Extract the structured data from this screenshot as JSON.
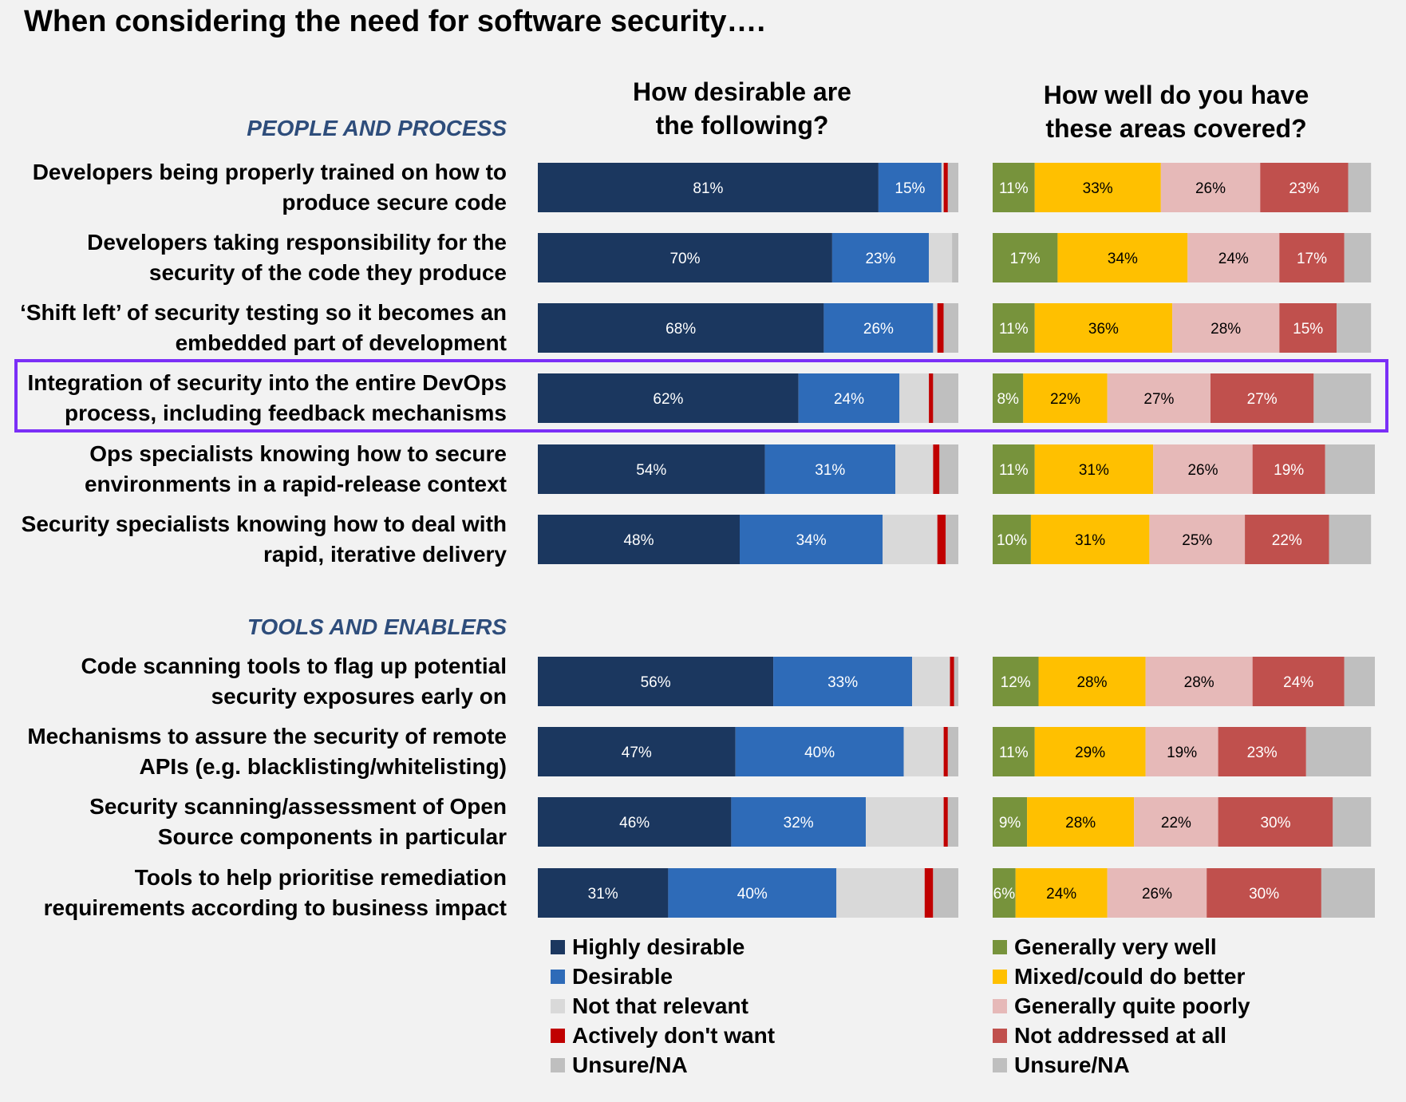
{
  "title": "When considering the need for software security….",
  "chart_data": {
    "type": "bar",
    "stacked": true,
    "orientation": "horizontal",
    "sections": [
      {
        "label": "PEOPLE AND PROCESS",
        "rows": [
          0,
          1,
          2,
          3,
          4,
          5
        ]
      },
      {
        "label": "TOOLS AND ENABLERS",
        "rows": [
          6,
          7,
          8,
          9
        ]
      }
    ],
    "categories": [
      [
        "Developers being properly trained on how to",
        "produce secure code"
      ],
      [
        "Developers taking responsibility for the",
        "security of the code they produce"
      ],
      [
        "‘Shift left’ of security testing so it becomes an",
        "embedded part of development"
      ],
      [
        "Integration of security into the entire DevOps",
        "process, including feedback mechanisms"
      ],
      [
        "Ops specialists knowing how to secure",
        "environments in a rapid-release context"
      ],
      [
        "Security specialists knowing how to deal with",
        "rapid, iterative delivery"
      ],
      [
        "Code scanning tools to flag up potential",
        "security exposures early on"
      ],
      [
        "Mechanisms to assure the security of remote",
        "APIs (e.g. blacklisting/whitelisting)"
      ],
      [
        "Security scanning/assessment of Open",
        "Source components in particular"
      ],
      [
        "Tools to help prioritise remediation",
        "requirements according to business impact"
      ]
    ],
    "highlighted_row": 3,
    "panels": [
      {
        "title": [
          "How desirable are",
          "the following?"
        ],
        "series": [
          {
            "name": "Highly desirable",
            "color": "#1b375f",
            "values": [
              81,
              70,
              68,
              62,
              54,
              48,
              56,
              47,
              46,
              31
            ]
          },
          {
            "name": "Desirable",
            "color": "#2e6bb8",
            "values": [
              15,
              23,
              26,
              24,
              31,
              34,
              33,
              40,
              32,
              40
            ]
          },
          {
            "name": "Not that relevant",
            "color": "#d9d9d9",
            "values": [
              0.5,
              5.5,
              1,
              7,
              9,
              13,
              9,
              9.5,
              18.5,
              21
            ]
          },
          {
            "name": "Actively don't want",
            "color": "#c00000",
            "values": [
              1,
              0,
              1.5,
              1,
              1.5,
              2,
              1,
              1,
              1,
              2
            ]
          },
          {
            "name": "Unsure/NA",
            "color": "#bfbfbf",
            "values": [
              2.5,
              1.5,
              3.5,
              6,
              4.5,
              3,
              1,
              2.5,
              2.5,
              6
            ]
          }
        ],
        "value_labels": {
          "Highly desirable": true,
          "Desirable": true
        }
      },
      {
        "title": [
          "How well do you have",
          "these areas covered?"
        ],
        "series": [
          {
            "name": "Generally very well",
            "color": "#77933c",
            "values": [
              11,
              17,
              11,
              8,
              11,
              10,
              12,
              11,
              9,
              6
            ]
          },
          {
            "name": "Mixed/could do better",
            "color": "#ffc000",
            "values": [
              33,
              34,
              36,
              22,
              31,
              31,
              28,
              29,
              28,
              24
            ]
          },
          {
            "name": "Generally quite poorly",
            "color": "#e6b9b8",
            "values": [
              26,
              24,
              28,
              27,
              26,
              25,
              28,
              19,
              22,
              26
            ]
          },
          {
            "name": "Not addressed at all",
            "color": "#c0504d",
            "values": [
              23,
              17,
              15,
              27,
              19,
              22,
              24,
              23,
              30,
              30
            ]
          },
          {
            "name": "Unsure/NA",
            "color": "#bfbfbf",
            "values": [
              6,
              7,
              9,
              15,
              13,
              11,
              8,
              17,
              10,
              14
            ]
          }
        ],
        "value_labels": {
          "Generally very well": true,
          "Mixed/could do better": true,
          "Generally quite poorly": true,
          "Not addressed at all": true
        }
      }
    ],
    "xlim": [
      0,
      100
    ]
  }
}
